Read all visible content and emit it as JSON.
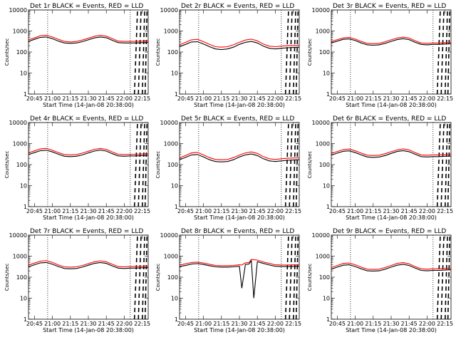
{
  "colors": {
    "events": "#000000",
    "lld": "#ff0000",
    "background": "#ffffff"
  },
  "xlabel": "Start Time (14-Jan-08 20:38:00)",
  "ylabel": "Counts/sec",
  "x_tick_labels": [
    "20:45",
    "21:00",
    "21:15",
    "21:30",
    "21:45",
    "22:00",
    "22:15"
  ],
  "y_tick_labels": [
    "1",
    "10",
    "100",
    "1000",
    "10000"
  ],
  "chart_data": [
    {
      "type": "line",
      "title": "Det 1r BLACK = Events, RED = LLD",
      "yscale": "log",
      "ylim": [
        1,
        10000
      ],
      "xlim": [
        0,
        100
      ],
      "x": [
        0,
        5,
        10,
        15,
        20,
        25,
        30,
        35,
        40,
        45,
        50,
        55,
        60,
        65,
        70,
        75,
        80,
        85,
        90,
        95,
        100
      ],
      "series": [
        {
          "name": "Events",
          "values": [
            320,
            400,
            500,
            520,
            430,
            330,
            270,
            260,
            270,
            310,
            380,
            470,
            520,
            480,
            360,
            280,
            270,
            270,
            270,
            280,
            290
          ]
        },
        {
          "name": "LLD",
          "values": [
            380,
            470,
            600,
            630,
            520,
            400,
            320,
            300,
            320,
            370,
            450,
            560,
            620,
            570,
            430,
            330,
            320,
            320,
            320,
            330,
            340
          ]
        }
      ],
      "dotted_x": [
        16,
        85
      ],
      "dashed_x": [
        91,
        94,
        97,
        99
      ]
    },
    {
      "type": "line",
      "title": "Det 2r BLACK = Events, RED = LLD",
      "yscale": "log",
      "ylim": [
        1,
        10000
      ],
      "xlim": [
        0,
        100
      ],
      "x": [
        0,
        5,
        10,
        15,
        20,
        25,
        30,
        35,
        40,
        45,
        50,
        55,
        60,
        65,
        70,
        75,
        80,
        85,
        90,
        95,
        100
      ],
      "series": [
        {
          "name": "Events",
          "values": [
            180,
            230,
            300,
            310,
            240,
            180,
            140,
            130,
            140,
            170,
            230,
            290,
            320,
            270,
            190,
            150,
            140,
            150,
            160,
            165,
            170
          ]
        },
        {
          "name": "LLD",
          "values": [
            220,
            290,
            380,
            400,
            310,
            230,
            180,
            170,
            180,
            220,
            290,
            370,
            410,
            340,
            240,
            190,
            180,
            190,
            200,
            205,
            210
          ]
        }
      ],
      "dotted_x": [
        16,
        85
      ],
      "dashed_x": [
        91,
        94,
        97,
        99
      ]
    },
    {
      "type": "line",
      "title": "Det 3r BLACK = Events, RED = LLD",
      "yscale": "log",
      "ylim": [
        1,
        10000
      ],
      "xlim": [
        0,
        100
      ],
      "x": [
        0,
        5,
        10,
        15,
        20,
        25,
        30,
        35,
        40,
        45,
        50,
        55,
        60,
        65,
        70,
        75,
        80,
        85,
        90,
        95,
        100
      ],
      "series": [
        {
          "name": "Events",
          "values": [
            270,
            330,
            400,
            420,
            350,
            270,
            220,
            210,
            220,
            260,
            320,
            390,
            430,
            390,
            290,
            230,
            220,
            230,
            230,
            240,
            245
          ]
        },
        {
          "name": "LLD",
          "values": [
            320,
            390,
            470,
            500,
            410,
            320,
            260,
            250,
            260,
            310,
            380,
            460,
            510,
            460,
            340,
            270,
            260,
            270,
            270,
            280,
            290
          ]
        }
      ],
      "dotted_x": [
        16,
        85
      ],
      "dashed_x": [
        91,
        94,
        97,
        99
      ]
    },
    {
      "type": "line",
      "title": "Det 4r BLACK = Events, RED = LLD",
      "yscale": "log",
      "ylim": [
        1,
        10000
      ],
      "xlim": [
        0,
        100
      ],
      "x": [
        0,
        5,
        10,
        15,
        20,
        25,
        30,
        35,
        40,
        45,
        50,
        55,
        60,
        65,
        70,
        75,
        80,
        85,
        90,
        95,
        100
      ],
      "series": [
        {
          "name": "Events",
          "values": [
            300,
            370,
            460,
            480,
            400,
            310,
            250,
            240,
            250,
            290,
            360,
            440,
            490,
            440,
            330,
            260,
            250,
            260,
            260,
            270,
            275
          ]
        },
        {
          "name": "LLD",
          "values": [
            360,
            450,
            560,
            590,
            480,
            370,
            300,
            290,
            300,
            350,
            430,
            530,
            590,
            530,
            400,
            310,
            300,
            310,
            310,
            320,
            330
          ]
        }
      ],
      "dotted_x": [
        16,
        85
      ],
      "dashed_x": [
        91,
        94,
        97,
        99
      ]
    },
    {
      "type": "line",
      "title": "Det 5r BLACK = Events, RED = LLD",
      "yscale": "log",
      "ylim": [
        1,
        10000
      ],
      "xlim": [
        0,
        100
      ],
      "x": [
        0,
        5,
        10,
        15,
        20,
        25,
        30,
        35,
        40,
        45,
        50,
        55,
        60,
        65,
        70,
        75,
        80,
        85,
        90,
        95,
        100
      ],
      "series": [
        {
          "name": "Events",
          "values": [
            170,
            220,
            290,
            300,
            230,
            170,
            140,
            135,
            140,
            170,
            230,
            290,
            320,
            270,
            190,
            150,
            140,
            150,
            160,
            165,
            170
          ]
        },
        {
          "name": "LLD",
          "values": [
            210,
            270,
            360,
            380,
            290,
            215,
            175,
            170,
            175,
            215,
            285,
            360,
            400,
            340,
            240,
            190,
            175,
            190,
            200,
            205,
            210
          ]
        }
      ],
      "dotted_x": [
        16,
        85
      ],
      "dashed_x": [
        91,
        94,
        97,
        99
      ]
    },
    {
      "type": "line",
      "title": "Det 6r BLACK = Events, RED = LLD",
      "yscale": "log",
      "ylim": [
        1,
        10000
      ],
      "xlim": [
        0,
        100
      ],
      "x": [
        0,
        5,
        10,
        15,
        20,
        25,
        30,
        35,
        40,
        45,
        50,
        55,
        60,
        65,
        70,
        75,
        80,
        85,
        90,
        95,
        100
      ],
      "series": [
        {
          "name": "Events",
          "values": [
            280,
            350,
            430,
            450,
            370,
            290,
            230,
            220,
            230,
            270,
            340,
            420,
            460,
            410,
            310,
            240,
            230,
            240,
            240,
            250,
            255
          ]
        },
        {
          "name": "LLD",
          "values": [
            340,
            420,
            520,
            550,
            450,
            350,
            280,
            270,
            280,
            330,
            410,
            500,
            560,
            500,
            370,
            290,
            280,
            290,
            290,
            300,
            310
          ]
        }
      ],
      "dotted_x": [
        16,
        85
      ],
      "dashed_x": [
        91,
        94,
        97,
        99
      ]
    },
    {
      "type": "line",
      "title": "Det 7r BLACK = Events, RED = LLD",
      "yscale": "log",
      "ylim": [
        1,
        10000
      ],
      "xlim": [
        0,
        100
      ],
      "x": [
        0,
        5,
        10,
        15,
        20,
        25,
        30,
        35,
        40,
        45,
        50,
        55,
        60,
        65,
        70,
        75,
        80,
        85,
        90,
        95,
        100
      ],
      "series": [
        {
          "name": "Events",
          "values": [
            310,
            390,
            480,
            500,
            410,
            320,
            260,
            250,
            260,
            300,
            370,
            450,
            500,
            450,
            340,
            270,
            260,
            270,
            270,
            280,
            285
          ]
        },
        {
          "name": "LLD",
          "values": [
            370,
            470,
            580,
            610,
            500,
            380,
            310,
            300,
            310,
            360,
            440,
            540,
            600,
            540,
            410,
            320,
            310,
            320,
            320,
            330,
            340
          ]
        }
      ],
      "dotted_x": [
        16,
        85
      ],
      "dashed_x": [
        91,
        94,
        97,
        99
      ]
    },
    {
      "type": "line",
      "title": "Det 8r BLACK = Events, RED = LLD",
      "yscale": "log",
      "ylim": [
        1,
        10000
      ],
      "xlim": [
        0,
        100
      ],
      "x": [
        0,
        5,
        10,
        15,
        20,
        25,
        30,
        35,
        40,
        45,
        50,
        52,
        55,
        58,
        60,
        62,
        65,
        70,
        75,
        80,
        85,
        90,
        95,
        100
      ],
      "series": [
        {
          "name": "Events",
          "values": [
            320,
            360,
            420,
            440,
            400,
            350,
            310,
            300,
            300,
            310,
            330,
            30,
            400,
            420,
            600,
            10,
            550,
            450,
            380,
            330,
            320,
            320,
            325,
            330
          ]
        },
        {
          "name": "LLD",
          "values": [
            380,
            430,
            500,
            520,
            470,
            410,
            360,
            350,
            350,
            360,
            390,
            380,
            480,
            500,
            700,
            680,
            650,
            530,
            450,
            390,
            380,
            380,
            385,
            390
          ]
        }
      ],
      "dotted_x": [
        16,
        85
      ],
      "dashed_x": [
        91,
        94,
        97,
        99
      ]
    },
    {
      "type": "line",
      "title": "Det 9r BLACK = Events, RED = LLD",
      "yscale": "log",
      "ylim": [
        1,
        10000
      ],
      "xlim": [
        0,
        100
      ],
      "x": [
        0,
        5,
        10,
        15,
        20,
        25,
        30,
        35,
        40,
        45,
        50,
        55,
        60,
        65,
        70,
        75,
        80,
        85,
        90,
        95,
        100
      ],
      "series": [
        {
          "name": "Events",
          "values": [
            240,
            300,
            370,
            390,
            320,
            250,
            200,
            195,
            200,
            240,
            300,
            370,
            410,
            360,
            270,
            210,
            200,
            210,
            210,
            220,
            225
          ]
        },
        {
          "name": "LLD",
          "values": [
            290,
            360,
            450,
            470,
            390,
            300,
            240,
            235,
            240,
            290,
            360,
            450,
            490,
            430,
            320,
            250,
            240,
            250,
            250,
            260,
            270
          ]
        }
      ],
      "dotted_x": [
        16,
        85
      ],
      "dashed_x": [
        91,
        94,
        97,
        99
      ]
    }
  ]
}
